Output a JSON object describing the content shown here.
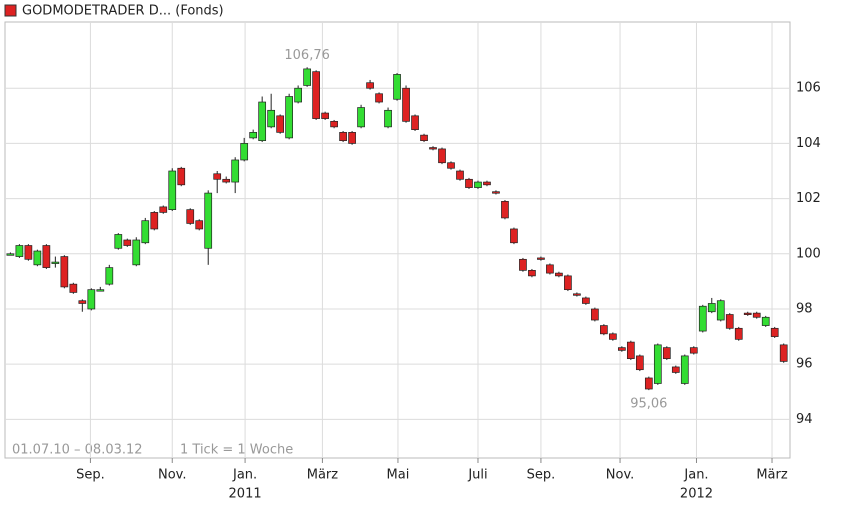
{
  "chart_data": {
    "type": "candlestick",
    "title": "GODMODETRADER D... (Fonds)",
    "title_color": "#dd2222",
    "up_color": "#33dd33",
    "down_color": "#dd2222",
    "period": "01.07.10 – 08.03.12",
    "tick_note": "1 Tick = 1 Woche",
    "annotations": [
      {
        "text": "106,76",
        "value": 106.76
      },
      {
        "text": "95,06",
        "value": 95.06
      }
    ],
    "xlim": [
      -0.6,
      86.7
    ],
    "xticks": [
      {
        "value": 8.9,
        "label": "Sep."
      },
      {
        "value": 18,
        "label": "Nov."
      },
      {
        "value": 26.1,
        "label": "Jan."
      },
      {
        "value": 34.7,
        "label": "März"
      },
      {
        "value": 43.1,
        "label": "Mai"
      },
      {
        "value": 52,
        "label": "Juli"
      },
      {
        "value": 59,
        "label": "Sep."
      },
      {
        "value": 67.8,
        "label": "Nov."
      },
      {
        "value": 76.3,
        "label": "Jan."
      },
      {
        "value": 84.7,
        "label": "März"
      }
    ],
    "xticks_year": [
      {
        "value": 26.1,
        "label": "2011"
      },
      {
        "value": 76.3,
        "label": "2012"
      }
    ],
    "ylim": [
      92.6,
      108.4
    ],
    "yticks": [
      94,
      96,
      98,
      100,
      102,
      104,
      106
    ],
    "grid": true,
    "open": [
      100.0,
      99.9,
      100.3,
      99.6,
      100.3,
      99.7,
      99.9,
      98.9,
      98.3,
      98.0,
      98.7,
      98.9,
      100.2,
      100.5,
      99.6,
      100.4,
      101.5,
      101.7,
      101.6,
      103.1,
      101.6,
      101.2,
      100.2,
      102.9,
      102.7,
      102.6,
      103.4,
      104.2,
      104.1,
      104.6,
      105.0,
      104.2,
      105.5,
      106.1,
      106.6,
      105.1,
      104.8,
      104.4,
      104.4,
      104.6,
      106.2,
      105.8,
      104.6,
      105.6,
      106.0,
      105.0,
      104.3,
      103.85,
      103.8,
      103.3,
      103.0,
      102.7,
      102.4,
      102.6,
      102.25,
      101.9,
      100.9,
      99.8,
      99.4,
      99.85,
      99.6,
      99.3,
      99.2,
      98.55,
      98.4,
      98.0,
      97.4,
      97.1,
      96.6,
      96.8,
      96.3,
      95.5,
      95.3,
      96.6,
      95.9,
      95.3,
      96.6,
      97.2,
      97.9,
      97.6,
      97.8,
      97.3,
      97.85,
      97.85,
      97.4,
      97.3,
      96.7
    ],
    "high": [
      100.05,
      100.35,
      100.35,
      100.15,
      100.35,
      99.9,
      99.95,
      98.95,
      98.35,
      98.75,
      98.8,
      99.6,
      100.75,
      100.55,
      100.6,
      101.3,
      101.55,
      101.75,
      103.1,
      103.15,
      101.65,
      101.25,
      102.3,
      103.0,
      102.8,
      103.5,
      104.2,
      104.5,
      105.7,
      105.8,
      105.05,
      105.8,
      106.1,
      106.76,
      106.65,
      105.15,
      104.85,
      104.45,
      104.45,
      105.4,
      106.3,
      105.85,
      105.3,
      106.55,
      106.1,
      105.05,
      104.35,
      103.9,
      103.85,
      103.35,
      103.05,
      102.75,
      102.65,
      102.65,
      102.3,
      101.95,
      100.95,
      99.85,
      99.45,
      99.9,
      99.65,
      99.35,
      99.25,
      98.6,
      98.45,
      98.05,
      97.45,
      97.15,
      96.65,
      96.85,
      96.35,
      95.55,
      96.75,
      96.65,
      95.95,
      96.35,
      96.65,
      98.15,
      98.4,
      98.35,
      97.85,
      97.35,
      97.9,
      97.9,
      97.75,
      97.35,
      96.75
    ],
    "low": [
      99.95,
      99.85,
      99.75,
      99.55,
      99.45,
      99.5,
      98.75,
      98.55,
      97.9,
      97.95,
      98.65,
      98.85,
      100.15,
      100.25,
      99.55,
      100.35,
      100.85,
      101.45,
      101.55,
      102.45,
      101.05,
      100.85,
      99.6,
      102.2,
      102.55,
      102.2,
      103.35,
      104.15,
      104.05,
      104.55,
      104.35,
      104.15,
      105.45,
      106.05,
      104.85,
      104.85,
      104.55,
      104.05,
      103.95,
      104.55,
      105.95,
      105.45,
      104.55,
      105.55,
      104.75,
      104.45,
      104.05,
      103.75,
      103.25,
      103.05,
      102.65,
      102.35,
      102.35,
      102.45,
      102.15,
      101.25,
      100.35,
      99.35,
      99.15,
      99.75,
      99.25,
      99.15,
      98.65,
      98.45,
      98.15,
      97.55,
      97.05,
      96.85,
      96.45,
      96.15,
      95.75,
      95.06,
      95.25,
      96.15,
      95.65,
      95.25,
      96.35,
      97.15,
      97.85,
      97.55,
      97.25,
      96.85,
      97.75,
      97.65,
      97.35,
      96.95,
      96.05
    ],
    "close": [
      100.0,
      100.3,
      99.8,
      100.1,
      99.5,
      99.7,
      98.8,
      98.6,
      98.2,
      98.7,
      98.7,
      99.5,
      100.7,
      100.3,
      100.5,
      101.2,
      100.9,
      101.5,
      103.0,
      102.5,
      101.1,
      100.9,
      102.2,
      102.7,
      102.6,
      103.4,
      104.0,
      104.4,
      105.5,
      105.2,
      104.4,
      105.7,
      106.0,
      106.7,
      104.9,
      104.9,
      104.6,
      104.1,
      104.0,
      105.3,
      106.0,
      105.5,
      105.2,
      106.5,
      104.8,
      104.5,
      104.1,
      103.8,
      103.3,
      103.1,
      102.7,
      102.4,
      102.6,
      102.5,
      102.2,
      101.3,
      100.4,
      99.4,
      99.2,
      99.8,
      99.3,
      99.2,
      98.7,
      98.5,
      98.2,
      97.6,
      97.1,
      96.9,
      96.5,
      96.2,
      95.8,
      95.1,
      96.7,
      96.2,
      95.7,
      96.3,
      96.4,
      98.1,
      98.2,
      98.3,
      97.3,
      96.9,
      97.8,
      97.7,
      97.7,
      97.0,
      96.1
    ]
  }
}
